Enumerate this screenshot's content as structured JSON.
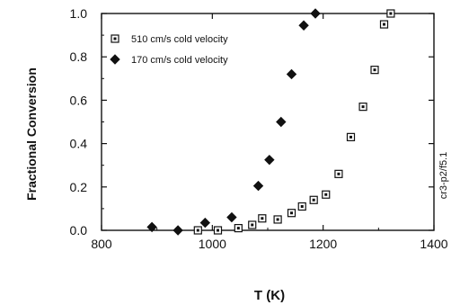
{
  "chart_data": {
    "type": "scatter",
    "xlabel": "T (K)",
    "ylabel": "Fractional Conversion",
    "xlim": [
      800,
      1400
    ],
    "ylim": [
      0,
      1.0
    ],
    "xticks": [
      "800",
      "1000",
      "1200",
      "1400"
    ],
    "yticks": [
      "0.0",
      "0.2",
      "0.4",
      "0.6",
      "0.8",
      "1.0"
    ],
    "series": [
      {
        "name": "510 cm/s cold velocity",
        "marker": "open-square",
        "color": "#111111",
        "x": [
          974,
          1010,
          1047,
          1072,
          1090,
          1118,
          1143,
          1162,
          1183,
          1205,
          1228,
          1250,
          1272,
          1293,
          1310,
          1322
        ],
        "y": [
          0.0,
          0.0,
          0.01,
          0.025,
          0.055,
          0.05,
          0.08,
          0.11,
          0.14,
          0.165,
          0.26,
          0.43,
          0.57,
          0.74,
          0.95,
          1.0
        ]
      },
      {
        "name": "170 cm/s cold velocity",
        "marker": "filled-diamond",
        "color": "#111111",
        "x": [
          891,
          938,
          987,
          1035,
          1083,
          1103,
          1124,
          1143,
          1165,
          1186
        ],
        "y": [
          0.015,
          0.0,
          0.035,
          0.06,
          0.205,
          0.325,
          0.5,
          0.72,
          0.945,
          1.0
        ]
      }
    ],
    "legend": "top-left",
    "grid": false
  },
  "side_label": "cr3-p2/f5.1"
}
